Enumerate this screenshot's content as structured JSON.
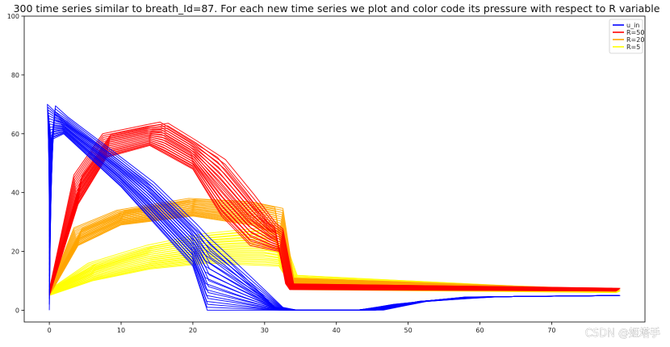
{
  "chart_data": {
    "type": "line",
    "title": "300 time series similar to breath_Id=87. For each new time series we plot and color code its pressure with respect to R variable",
    "xlabel": "",
    "ylabel": "",
    "xlim": [
      -3.5,
      83
    ],
    "ylim": [
      -4,
      100
    ],
    "xticks": [
      0,
      10,
      20,
      30,
      40,
      50,
      60,
      70
    ],
    "yticks": [
      0,
      20,
      40,
      60,
      80,
      100
    ],
    "grid": false,
    "legend_position": "top-right",
    "legend": [
      {
        "label": "u_in",
        "color": "#0000ff"
      },
      {
        "label": "R=50",
        "color": "#ff0000"
      },
      {
        "label": "R=20",
        "color": "#ffa500"
      },
      {
        "label": "R=5",
        "color": "#ffff00"
      }
    ],
    "series": [
      {
        "label": "u_in",
        "color": "#0000ff",
        "points": [
          [
            0,
            0
          ],
          [
            0.3,
            58
          ],
          [
            2,
            60
          ],
          [
            10,
            42
          ],
          [
            20,
            15
          ],
          [
            22,
            0
          ],
          [
            32,
            0
          ],
          [
            43,
            0
          ],
          [
            48,
            2
          ],
          [
            58,
            4.5
          ],
          [
            79,
            5
          ]
        ],
        "band_points": [
          [
            0,
            48
          ],
          [
            0.3,
            70
          ],
          [
            2,
            66
          ],
          [
            14,
            44
          ],
          [
            25,
            18
          ],
          [
            32,
            1
          ],
          [
            34,
            0
          ],
          [
            46,
            0
          ],
          [
            52,
            3
          ],
          [
            62,
            4.6
          ],
          [
            79,
            5
          ]
        ]
      },
      {
        "label": "R=50",
        "color": "#ff0000",
        "points": [
          [
            0,
            5
          ],
          [
            4,
            36
          ],
          [
            8,
            52
          ],
          [
            14,
            56
          ],
          [
            20,
            48
          ],
          [
            24,
            32
          ],
          [
            28,
            22
          ],
          [
            32,
            20
          ],
          [
            33.5,
            7
          ],
          [
            79,
            6.5
          ]
        ],
        "band_points": [
          [
            0,
            7
          ],
          [
            4,
            46
          ],
          [
            8,
            60
          ],
          [
            16,
            64
          ],
          [
            24,
            52
          ],
          [
            28,
            40
          ],
          [
            31,
            30
          ],
          [
            32,
            28
          ],
          [
            33.5,
            9
          ],
          [
            79,
            7.5
          ]
        ]
      },
      {
        "label": "R=20",
        "color": "#ffa500",
        "points": [
          [
            0,
            5
          ],
          [
            4,
            22
          ],
          [
            10,
            29
          ],
          [
            20,
            32
          ],
          [
            28,
            29
          ],
          [
            32,
            26
          ],
          [
            33.5,
            9
          ],
          [
            79,
            6.5
          ]
        ],
        "band_points": [
          [
            0,
            7
          ],
          [
            4,
            28
          ],
          [
            10,
            34
          ],
          [
            20,
            38
          ],
          [
            28,
            37
          ],
          [
            32,
            35
          ],
          [
            33.5,
            11
          ],
          [
            79,
            7
          ]
        ]
      },
      {
        "label": "R=5",
        "color": "#ffff00",
        "points": [
          [
            0,
            5
          ],
          [
            6,
            10
          ],
          [
            14,
            14
          ],
          [
            22,
            16
          ],
          [
            32,
            15
          ],
          [
            34,
            7
          ],
          [
            79,
            6
          ]
        ],
        "band_points": [
          [
            0,
            7
          ],
          [
            6,
            16
          ],
          [
            14,
            22
          ],
          [
            22,
            26
          ],
          [
            30,
            28
          ],
          [
            32,
            26
          ],
          [
            34,
            12
          ],
          [
            79,
            6.5
          ]
        ]
      }
    ]
  },
  "watermark": "CSDN @姬塔手"
}
